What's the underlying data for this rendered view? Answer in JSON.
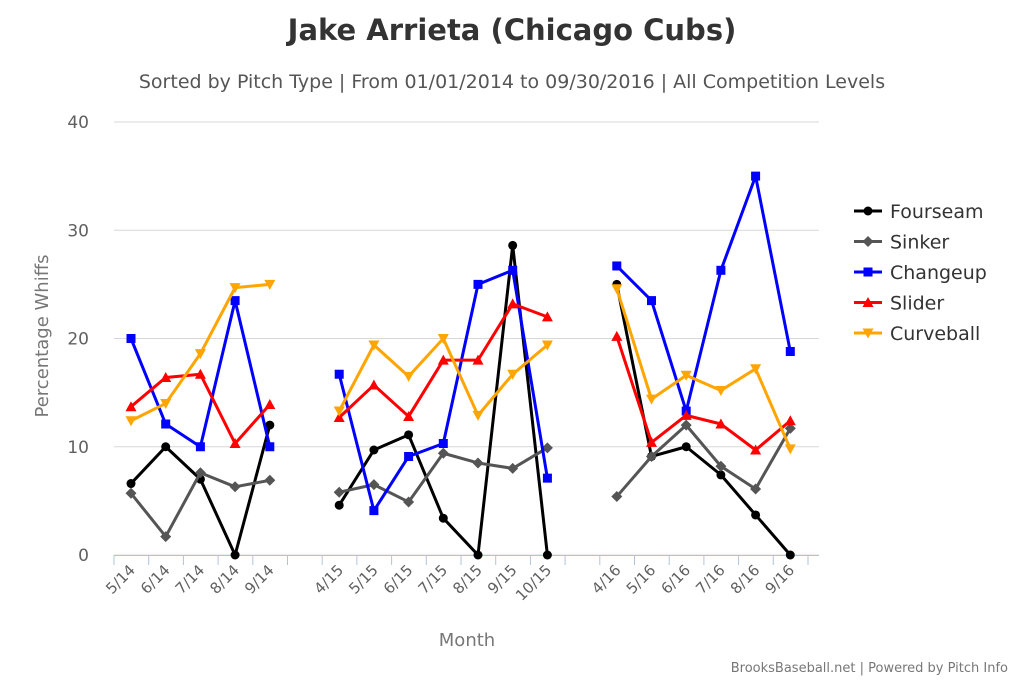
{
  "chart_data": {
    "type": "line",
    "title": "Jake Arrieta (Chicago Cubs)",
    "subtitle": "Sorted by Pitch Type | From 01/01/2014 to 09/30/2016 | All Competition Levels",
    "xlabel": "Month",
    "ylabel": "Percentage Whiffs",
    "ylim": [
      0,
      40
    ],
    "yticks": [
      0,
      10,
      20,
      30,
      40
    ],
    "grid": true,
    "legend_position": "right",
    "categories": [
      "5/14",
      "6/14",
      "7/14",
      "8/14",
      "9/14",
      "",
      "4/15",
      "5/15",
      "6/15",
      "7/15",
      "8/15",
      "9/15",
      "10/15",
      "",
      "4/16",
      "5/16",
      "6/16",
      "7/16",
      "8/16",
      "9/16"
    ],
    "series": [
      {
        "name": "Fourseam",
        "color": "#000000",
        "marker": "circle",
        "values": [
          6.6,
          10.0,
          7.0,
          0.0,
          12.0,
          null,
          4.6,
          9.7,
          11.1,
          3.4,
          0.0,
          28.6,
          0.0,
          null,
          25.0,
          9.1,
          10.0,
          7.4,
          3.7,
          0.0
        ]
      },
      {
        "name": "Sinker",
        "color": "#555555",
        "marker": "diamond",
        "values": [
          5.7,
          1.7,
          7.6,
          6.3,
          6.9,
          null,
          5.8,
          6.5,
          4.9,
          9.4,
          8.5,
          8.0,
          9.9,
          null,
          5.4,
          9.1,
          12.0,
          8.2,
          6.1,
          11.7
        ]
      },
      {
        "name": "Changeup",
        "color": "#0000ff",
        "marker": "square",
        "values": [
          20.0,
          12.1,
          10.0,
          23.5,
          10.0,
          null,
          16.7,
          4.1,
          9.1,
          10.3,
          25.0,
          26.3,
          7.1,
          null,
          26.7,
          23.5,
          13.3,
          26.3,
          35.0,
          18.8
        ]
      },
      {
        "name": "Slider",
        "color": "#ff0000",
        "marker": "triangle",
        "values": [
          13.7,
          16.4,
          16.7,
          10.3,
          13.9,
          null,
          12.7,
          15.7,
          12.8,
          18.0,
          18.0,
          23.2,
          22.0,
          null,
          20.2,
          10.4,
          12.9,
          12.1,
          9.7,
          12.4
        ]
      },
      {
        "name": "Curveball",
        "color": "#ffa500",
        "marker": "triangle-down",
        "values": [
          12.4,
          14.0,
          18.6,
          24.7,
          25.0,
          null,
          13.3,
          19.4,
          16.5,
          20.0,
          12.9,
          16.7,
          19.4,
          null,
          24.6,
          14.4,
          16.6,
          15.2,
          17.2,
          9.8
        ]
      }
    ],
    "credit": "BrooksBaseball.net | Powered by Pitch Info"
  }
}
